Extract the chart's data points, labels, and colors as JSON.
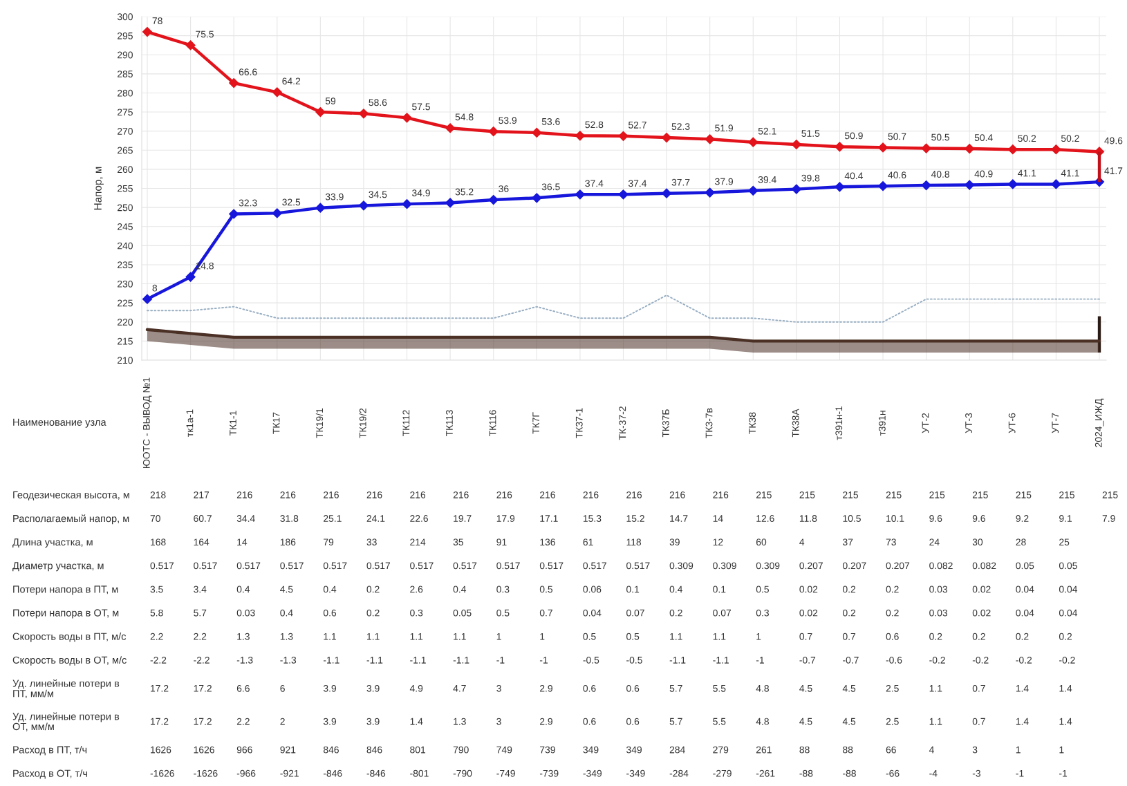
{
  "chart_data": [
    {
      "type": "line",
      "categories": [
        "ЮОТС - ВЫВОД №1",
        "тк1а-1",
        "ТК1-1",
        "ТК17",
        "ТК19/1",
        "ТК19/2",
        "ТК112",
        "ТК113",
        "ТК116",
        "ТК7Г",
        "ТК37-1",
        "ТК-37-2",
        "ТК37Б",
        "ТК3-7в",
        "ТК38",
        "ТК38А",
        "т391н-1",
        "т391н",
        "УТ-2",
        "УТ-3",
        "УТ-6",
        "УТ-7",
        "2024_ИЖД"
      ],
      "xlabel": "Наименование узла",
      "ylabel": "Напор, м",
      "ylim": [
        210,
        300
      ],
      "yticks": [
        210,
        215,
        220,
        225,
        230,
        235,
        240,
        245,
        250,
        255,
        260,
        265,
        270,
        275,
        280,
        285,
        290,
        295,
        300
      ],
      "grid": true,
      "line_style": "solid",
      "series": [
        {
          "type": "bar",
          "color": "#2b1b15",
          "base": [
            null,
            null,
            null,
            null,
            null,
            null,
            null,
            null,
            null,
            null,
            null,
            null,
            null,
            null,
            null,
            null,
            null,
            null,
            null,
            null,
            null,
            null,
            212
          ],
          "values": [
            null,
            null,
            null,
            null,
            null,
            null,
            null,
            null,
            null,
            null,
            null,
            null,
            null,
            null,
            null,
            null,
            null,
            null,
            null,
            null,
            null,
            null,
            9.5
          ]
        },
        {
          "color": "#4b3026",
          "values": [
            218,
            217,
            216,
            216,
            216,
            216,
            216,
            216,
            216,
            216,
            216,
            216,
            216,
            216,
            215,
            215,
            215,
            215,
            215,
            215,
            215,
            215,
            215
          ],
          "lower": [
            215,
            214,
            213,
            213,
            213,
            213,
            213,
            213,
            213,
            213,
            213,
            213,
            213,
            213,
            212,
            212,
            212,
            212,
            212,
            212,
            212,
            212,
            212
          ],
          "upper": [
            218,
            217,
            216,
            216,
            216,
            216,
            216,
            216,
            216,
            216,
            216,
            216,
            216,
            216,
            215,
            215,
            215,
            215,
            215,
            215,
            215,
            215,
            215
          ]
        },
        {
          "color": "#98aec2",
          "line_style": "dotted",
          "values": [
            223,
            223,
            224,
            221,
            221,
            221,
            221,
            221,
            221,
            224,
            221,
            221,
            227,
            221,
            221,
            220,
            220,
            220,
            226,
            226,
            226,
            226,
            226
          ]
        },
        {
          "color": "#1717dc",
          "marker": "diamond",
          "values": [
            226,
            231.8,
            248.3,
            248.5,
            249.9,
            250.5,
            250.9,
            251.2,
            252,
            252.5,
            253.4,
            253.4,
            253.7,
            253.9,
            254.4,
            254.8,
            255.4,
            255.6,
            255.8,
            255.9,
            256.1,
            256.1,
            256.7
          ]
        },
        {
          "color": "#e3131b",
          "marker": "diamond",
          "values": [
            296,
            292.5,
            282.6,
            280.2,
            275,
            274.6,
            273.5,
            270.8,
            269.9,
            269.6,
            268.8,
            268.7,
            268.3,
            267.9,
            267.1,
            266.5,
            265.9,
            265.7,
            265.5,
            265.4,
            265.2,
            265.2,
            264.6
          ]
        },
        {
          "type": "bar",
          "color": "#c0101a",
          "base": [
            null,
            null,
            null,
            null,
            null,
            null,
            null,
            null,
            null,
            null,
            null,
            null,
            null,
            null,
            null,
            null,
            null,
            null,
            null,
            null,
            null,
            null,
            256.7
          ],
          "values": [
            null,
            null,
            null,
            null,
            null,
            null,
            null,
            null,
            null,
            null,
            null,
            null,
            null,
            null,
            null,
            null,
            null,
            null,
            null,
            null,
            null,
            null,
            7.9
          ]
        }
      ],
      "annotations": [
        {
          "text": "78",
          "x": "ЮОТС - ВЫВОД №1",
          "y": 296
        },
        {
          "text": "75.5",
          "x": "тк1а-1",
          "y": 292.5
        },
        {
          "text": "66.6",
          "x": "ТК1-1",
          "y": 282.6
        },
        {
          "text": "64.2",
          "x": "ТК17",
          "y": 280.2
        },
        {
          "text": "59",
          "x": "ТК19/1",
          "y": 275
        },
        {
          "text": "58.6",
          "x": "ТК19/2",
          "y": 274.6
        },
        {
          "text": "57.5",
          "x": "ТК112",
          "y": 273.5
        },
        {
          "text": "54.8",
          "x": "ТК113",
          "y": 270.8
        },
        {
          "text": "53.9",
          "x": "ТК116",
          "y": 269.9
        },
        {
          "text": "53.6",
          "x": "ТК7Г",
          "y": 269.6
        },
        {
          "text": "52.8",
          "x": "ТК37-1",
          "y": 268.8
        },
        {
          "text": "52.7",
          "x": "ТК-37-2",
          "y": 268.7
        },
        {
          "text": "52.3",
          "x": "ТК37Б",
          "y": 268.3
        },
        {
          "text": "51.9",
          "x": "ТК3-7в",
          "y": 267.9
        },
        {
          "text": "52.1",
          "x": "ТК38",
          "y": 267.1
        },
        {
          "text": "51.5",
          "x": "ТК38А",
          "y": 266.5
        },
        {
          "text": "50.9",
          "x": "т391н-1",
          "y": 265.9
        },
        {
          "text": "50.7",
          "x": "т391н",
          "y": 265.7
        },
        {
          "text": "50.5",
          "x": "УТ-2",
          "y": 265.5
        },
        {
          "text": "50.4",
          "x": "УТ-3",
          "y": 265.4
        },
        {
          "text": "50.2",
          "x": "УТ-6",
          "y": 265.2
        },
        {
          "text": "50.2",
          "x": "УТ-7",
          "y": 265.2
        },
        {
          "text": "49.6",
          "x": "2024_ИЖД",
          "y": 264.6
        },
        {
          "text": "8",
          "x": "ЮОТС - ВЫВОД №1",
          "y": 226
        },
        {
          "text": "14.8",
          "x": "тк1а-1",
          "y": 231.8
        },
        {
          "text": "32.3",
          "x": "ТК1-1",
          "y": 248.3
        },
        {
          "text": "32.5",
          "x": "ТК17",
          "y": 248.5
        },
        {
          "text": "33.9",
          "x": "ТК19/1",
          "y": 249.9
        },
        {
          "text": "34.5",
          "x": "ТК19/2",
          "y": 250.5
        },
        {
          "text": "34.9",
          "x": "ТК112",
          "y": 250.9
        },
        {
          "text": "35.2",
          "x": "ТК113",
          "y": 251.2
        },
        {
          "text": "36",
          "x": "ТК116",
          "y": 252
        },
        {
          "text": "36.5",
          "x": "ТК7Г",
          "y": 252.5
        },
        {
          "text": "37.4",
          "x": "ТК37-1",
          "y": 253.4
        },
        {
          "text": "37.4",
          "x": "ТК-37-2",
          "y": 253.4
        },
        {
          "text": "37.7",
          "x": "ТК37Б",
          "y": 253.7
        },
        {
          "text": "37.9",
          "x": "ТК3-7в",
          "y": 253.9
        },
        {
          "text": "39.4",
          "x": "ТК38",
          "y": 254.4
        },
        {
          "text": "39.8",
          "x": "ТК38А",
          "y": 254.8
        },
        {
          "text": "40.4",
          "x": "т391н-1",
          "y": 255.4
        },
        {
          "text": "40.6",
          "x": "т391н",
          "y": 255.6
        },
        {
          "text": "40.8",
          "x": "УТ-2",
          "y": 255.8
        },
        {
          "text": "40.9",
          "x": "УТ-3",
          "y": 255.9
        },
        {
          "text": "41.1",
          "x": "УТ-6",
          "y": 256.1
        },
        {
          "text": "41.1",
          "x": "УТ-7",
          "y": 256.1
        },
        {
          "text": "41.7",
          "x": "2024_ИЖД",
          "y": 256.7
        }
      ]
    },
    {
      "type": "other",
      "y_categories": [
        "Геодезическая высота, м",
        "Располагаемый напор, м",
        "Длина участка, м",
        "Диаметр участка, м",
        "Потери напора в ПТ, м",
        "Потери напора в ОТ, м",
        "Скорость воды в ПТ, м/с",
        "Скорость воды в ОТ, м/с",
        "Уд. линейные потери в ПТ, мм/м",
        "Уд. линейные потери в ОТ, мм/м",
        "Расход в ПТ, т/ч",
        "Расход в ОТ, т/ч"
      ],
      "cell_labels": [
        [
          "218",
          "217",
          "216",
          "216",
          "216",
          "216",
          "216",
          "216",
          "216",
          "216",
          "216",
          "216",
          "216",
          "216",
          "215",
          "215",
          "215",
          "215",
          "215",
          "215",
          "215",
          "215",
          "215"
        ],
        [
          "70",
          "60.7",
          "34.4",
          "31.8",
          "25.1",
          "24.1",
          "22.6",
          "19.7",
          "17.9",
          "17.1",
          "15.3",
          "15.2",
          "14.7",
          "14",
          "12.6",
          "11.8",
          "10.5",
          "10.1",
          "9.6",
          "9.6",
          "9.2",
          "9.1",
          "7.9"
        ],
        [
          "168",
          "164",
          "14",
          "186",
          "79",
          "33",
          "214",
          "35",
          "91",
          "136",
          "61",
          "118",
          "39",
          "12",
          "60",
          "4",
          "37",
          "73",
          "24",
          "30",
          "28",
          "25",
          null
        ],
        [
          "0.517",
          "0.517",
          "0.517",
          "0.517",
          "0.517",
          "0.517",
          "0.517",
          "0.517",
          "0.517",
          "0.517",
          "0.517",
          "0.517",
          "0.309",
          "0.309",
          "0.309",
          "0.207",
          "0.207",
          "0.207",
          "0.082",
          "0.082",
          "0.05",
          "0.05",
          null
        ],
        [
          "3.5",
          "3.4",
          "0.4",
          "4.5",
          "0.4",
          "0.2",
          "2.6",
          "0.4",
          "0.3",
          "0.5",
          "0.06",
          "0.1",
          "0.4",
          "0.1",
          "0.5",
          "0.02",
          "0.2",
          "0.2",
          "0.03",
          "0.02",
          "0.04",
          "0.04",
          null
        ],
        [
          "5.8",
          "5.7",
          "0.03",
          "0.4",
          "0.6",
          "0.2",
          "0.3",
          "0.05",
          "0.5",
          "0.7",
          "0.04",
          "0.07",
          "0.2",
          "0.07",
          "0.3",
          "0.02",
          "0.2",
          "0.2",
          "0.03",
          "0.02",
          "0.04",
          "0.04",
          null
        ],
        [
          "2.2",
          "2.2",
          "1.3",
          "1.3",
          "1.1",
          "1.1",
          "1.1",
          "1.1",
          "1",
          "1",
          "0.5",
          "0.5",
          "1.1",
          "1.1",
          "1",
          "0.7",
          "0.7",
          "0.6",
          "0.2",
          "0.2",
          "0.2",
          "0.2",
          null
        ],
        [
          "-2.2",
          "-2.2",
          "-1.3",
          "-1.3",
          "-1.1",
          "-1.1",
          "-1.1",
          "-1.1",
          "-1",
          "-1",
          "-0.5",
          "-0.5",
          "-1.1",
          "-1.1",
          "-1",
          "-0.7",
          "-0.7",
          "-0.6",
          "-0.2",
          "-0.2",
          "-0.2",
          "-0.2",
          null
        ],
        [
          "17.2",
          "17.2",
          "6.6",
          "6",
          "3.9",
          "3.9",
          "4.9",
          "4.7",
          "3",
          "2.9",
          "0.6",
          "0.6",
          "5.7",
          "5.5",
          "4.8",
          "4.5",
          "4.5",
          "2.5",
          "1.1",
          "0.7",
          "1.4",
          "1.4",
          null
        ],
        [
          "17.2",
          "17.2",
          "2.2",
          "2",
          "3.9",
          "3.9",
          "1.4",
          "1.3",
          "3",
          "2.9",
          "0.6",
          "0.6",
          "5.7",
          "5.5",
          "4.8",
          "4.5",
          "4.5",
          "2.5",
          "1.1",
          "0.7",
          "1.4",
          "1.4",
          null
        ],
        [
          "1626",
          "1626",
          "966",
          "921",
          "846",
          "846",
          "801",
          "790",
          "749",
          "739",
          "349",
          "349",
          "284",
          "279",
          "261",
          "88",
          "88",
          "66",
          "4",
          "3",
          "1",
          "1",
          null
        ],
        [
          "-1626",
          "-1626",
          "-966",
          "-921",
          "-846",
          "-846",
          "-801",
          "-790",
          "-749",
          "-739",
          "-349",
          "-349",
          "-284",
          "-279",
          "-261",
          "-88",
          "-88",
          "-66",
          "-4",
          "-3",
          "-1",
          "-1",
          null
        ]
      ]
    }
  ]
}
